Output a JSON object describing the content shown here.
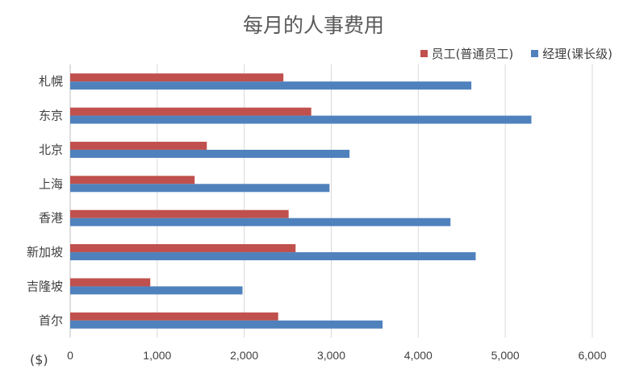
{
  "chart_data": {
    "type": "bar",
    "orientation": "horizontal",
    "title": "每月的人事费用",
    "unit_label": "($)",
    "categories": [
      "札幌",
      "东京",
      "北京",
      "上海",
      "香港",
      "新加坡",
      "吉隆坡",
      "首尔"
    ],
    "series": [
      {
        "name": "员工(普通员工)",
        "color": "#c0504d",
        "values": [
          2450,
          2770,
          1570,
          1430,
          2510,
          2590,
          920,
          2390
        ]
      },
      {
        "name": "经理(课长级)",
        "color": "#4f81bd",
        "values": [
          4610,
          5300,
          3210,
          2980,
          4370,
          4660,
          1980,
          3590
        ]
      }
    ],
    "xlim": [
      0,
      6000
    ],
    "x_ticks": [
      "0",
      "1,000",
      "2,000",
      "3,000",
      "4,000",
      "5,000",
      "6,000"
    ],
    "grid": true,
    "legend_position": "top-right"
  }
}
